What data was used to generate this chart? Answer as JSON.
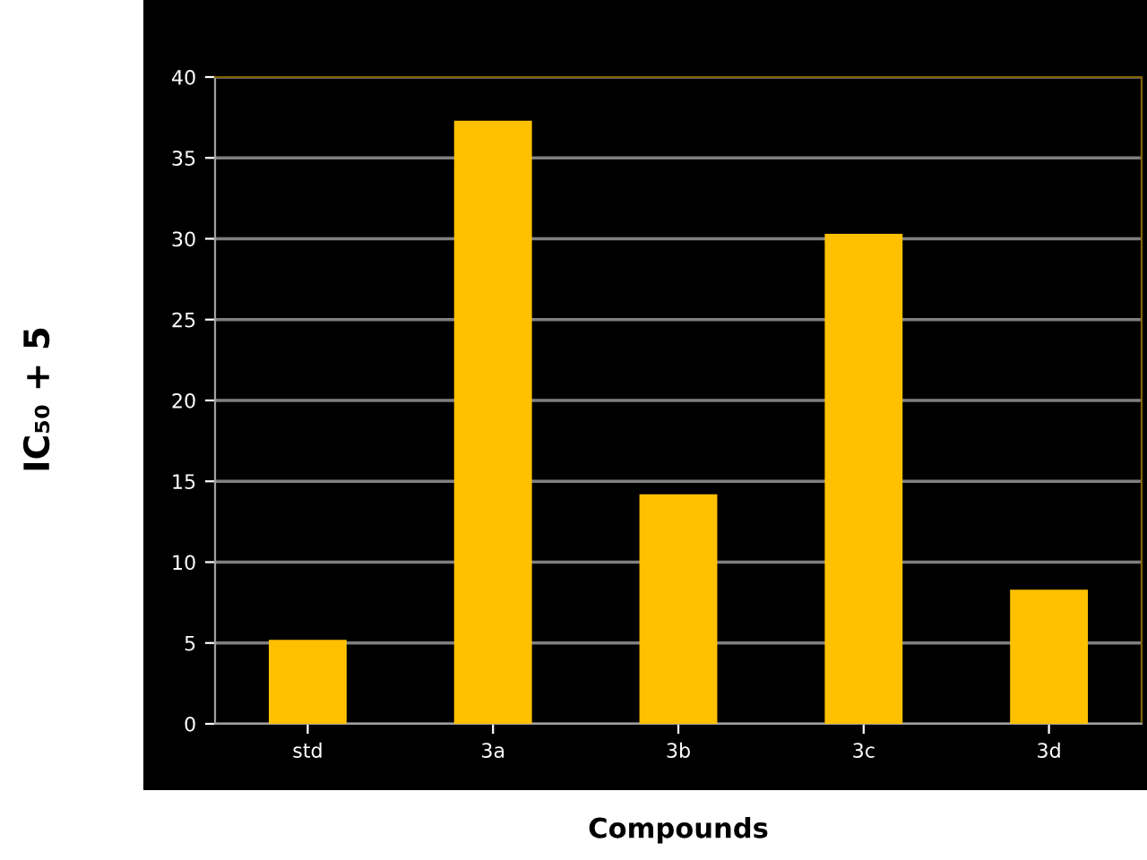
{
  "chart_data": {
    "type": "bar",
    "xlabel": "Compounds",
    "ylabel": "IC₅₀ + 5",
    "categories": [
      "std",
      "3a",
      "3b",
      "3c",
      "3d"
    ],
    "values": [
      5.2,
      37.3,
      14.2,
      30.3,
      8.3
    ],
    "color": "#ffc000",
    "ylim": [
      0,
      40
    ],
    "yticks": [
      0,
      5,
      10,
      15,
      20,
      25,
      30,
      35,
      40
    ],
    "grid": "y"
  }
}
